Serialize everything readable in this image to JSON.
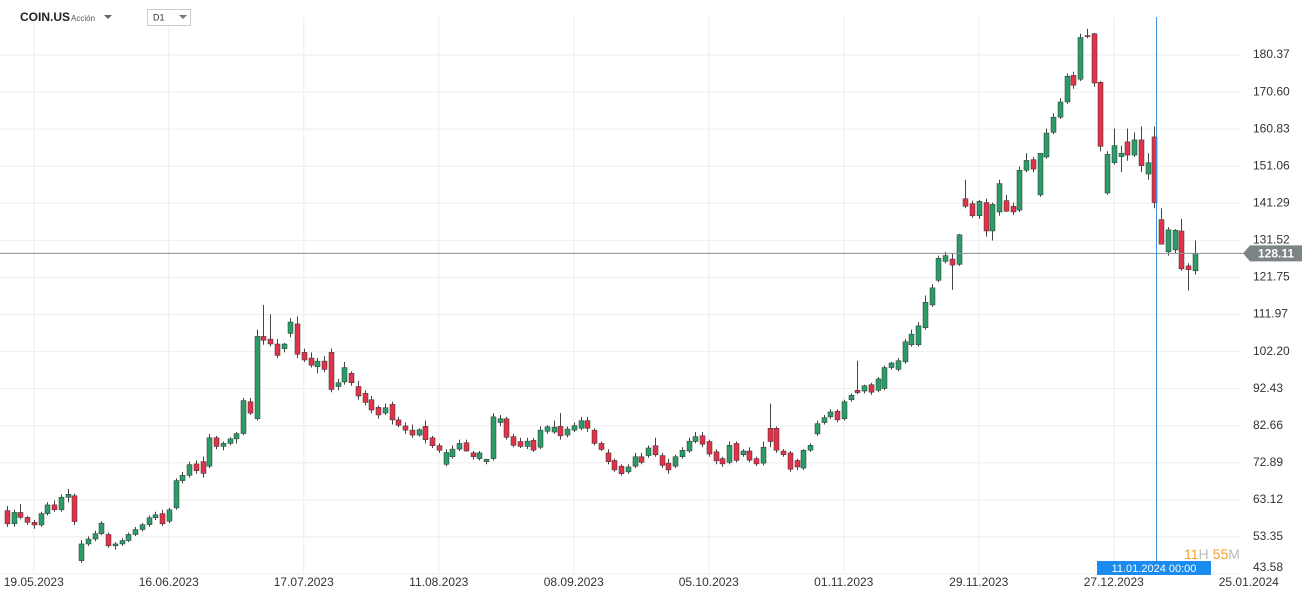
{
  "header": {
    "symbol": "COIN.US",
    "asset_type": "Acción",
    "timeframe": "D1"
  },
  "chart_data": {
    "type": "candlestick",
    "up_color": "#2b9c68",
    "down_color": "#e0334a",
    "grid": true,
    "candles": [
      [
        60.3,
        61.5,
        56,
        56.8
      ],
      [
        56.8,
        60.5,
        56,
        59.8
      ],
      [
        59.8,
        62,
        58,
        58.5
      ],
      [
        58.5,
        58.9,
        56.5,
        57.2
      ],
      [
        57.2,
        57.8,
        55.5,
        56.5
      ],
      [
        56.5,
        60,
        56,
        59.5
      ],
      [
        59.5,
        62.5,
        59,
        61.8
      ],
      [
        61.8,
        63,
        60,
        60.5
      ],
      [
        60.5,
        64.5,
        60,
        63.8
      ],
      [
        63.8,
        66,
        62.5,
        64.6
      ],
      [
        64.2,
        64.8,
        56.5,
        57.4
      ],
      [
        47.1,
        52.5,
        46.5,
        51.5
      ],
      [
        51.5,
        53.5,
        51,
        52.8
      ],
      [
        52.8,
        55,
        52.2,
        54.2
      ],
      [
        54.2,
        57.5,
        53.8,
        57
      ],
      [
        54,
        54.5,
        50.5,
        51
      ],
      [
        51,
        52,
        50,
        51.5
      ],
      [
        51.5,
        53,
        51,
        52.4
      ],
      [
        52.4,
        54.5,
        52,
        54
      ],
      [
        54,
        56,
        53.6,
        55.3
      ],
      [
        55.3,
        57,
        54.8,
        56.6
      ],
      [
        56.6,
        59,
        56,
        58.4
      ],
      [
        58.4,
        60,
        57.8,
        59.2
      ],
      [
        59.5,
        60.5,
        56.2,
        56.8
      ],
      [
        57.5,
        61,
        57,
        60.5
      ],
      [
        61,
        68.8,
        60.5,
        68.2
      ],
      [
        68.2,
        70.5,
        67.5,
        69.6
      ],
      [
        69.6,
        73.2,
        69,
        72.4
      ],
      [
        72.6,
        73.5,
        70,
        70.8
      ],
      [
        73.2,
        74.5,
        69,
        70.1
      ],
      [
        72,
        80.5,
        71.5,
        79.5
      ],
      [
        79.5,
        80,
        76.5,
        77.2
      ],
      [
        77.2,
        78.5,
        76.2,
        78
      ],
      [
        78,
        79.6,
        77.5,
        79.2
      ],
      [
        79.2,
        81,
        78,
        80.6
      ],
      [
        80.6,
        90,
        80.2,
        89.3
      ],
      [
        89,
        90,
        85.5,
        86
      ],
      [
        84.5,
        108,
        84,
        106.2
      ],
      [
        106.2,
        114.5,
        104,
        105.2
      ],
      [
        105.5,
        112,
        103.5,
        104.2
      ],
      [
        104.2,
        105.5,
        100.5,
        101.2
      ],
      [
        103,
        104.5,
        102,
        104.2
      ],
      [
        107,
        111,
        106,
        110
      ],
      [
        109.5,
        111.5,
        100.5,
        101.5
      ],
      [
        102,
        103,
        99.5,
        100
      ],
      [
        100.5,
        102,
        98,
        98.6
      ],
      [
        98.2,
        100.5,
        96.5,
        99.7
      ],
      [
        99.7,
        101,
        96.8,
        97.5
      ],
      [
        102,
        103,
        91.5,
        92.2
      ],
      [
        93,
        95,
        92,
        94
      ],
      [
        94.2,
        99.5,
        93.5,
        98
      ],
      [
        96.5,
        97,
        93.2,
        94
      ],
      [
        93,
        94.5,
        89.5,
        90.5
      ],
      [
        91.2,
        92,
        88,
        88.8
      ],
      [
        89.5,
        90.5,
        86,
        86.8
      ],
      [
        87.5,
        88,
        84.5,
        85.5
      ],
      [
        86,
        88.5,
        85.5,
        87.4
      ],
      [
        88.3,
        89,
        83,
        84.2
      ],
      [
        84.2,
        85,
        82.3,
        82.8
      ],
      [
        82.6,
        83.5,
        80.5,
        81.5
      ],
      [
        81.5,
        83,
        79.5,
        80.2
      ],
      [
        80.2,
        82,
        79.8,
        81.6
      ],
      [
        82.5,
        84,
        78,
        79
      ],
      [
        79.5,
        80,
        76.8,
        77.4
      ],
      [
        77.4,
        78,
        75.5,
        76.2
      ],
      [
        72.5,
        76.5,
        72,
        75.6
      ],
      [
        74.5,
        77.5,
        74,
        76.5
      ],
      [
        76.5,
        79,
        76,
        78
      ],
      [
        78.2,
        79,
        75.8,
        76
      ],
      [
        75.5,
        76,
        73.8,
        74.5
      ],
      [
        74,
        76,
        73.5,
        75.5
      ],
      [
        73.2,
        74,
        72.5,
        73.8
      ],
      [
        74,
        86,
        73.5,
        85
      ],
      [
        83.5,
        85.5,
        82.5,
        84.5
      ],
      [
        84.5,
        85,
        79,
        79.6
      ],
      [
        79.8,
        80.5,
        77,
        77.5
      ],
      [
        78.5,
        79.5,
        76.8,
        77.2
      ],
      [
        77.2,
        79.5,
        76.5,
        78.6
      ],
      [
        78.8,
        79.5,
        75.8,
        76.2
      ],
      [
        77,
        82.5,
        76.5,
        81.5
      ],
      [
        81.2,
        82.8,
        80.5,
        82.4
      ],
      [
        81,
        84,
        80.5,
        82.3
      ],
      [
        82.5,
        86,
        79,
        80
      ],
      [
        80.2,
        82.5,
        79.6,
        81.8
      ],
      [
        81.5,
        83.5,
        81,
        82.7
      ],
      [
        82,
        85,
        81.5,
        84
      ],
      [
        84,
        85,
        81,
        82
      ],
      [
        81.5,
        82,
        77.5,
        78
      ],
      [
        78,
        78.5,
        76,
        76.4
      ],
      [
        75.5,
        76.5,
        72.5,
        73.2
      ],
      [
        73.5,
        74,
        70.5,
        71
      ],
      [
        72,
        72.5,
        69.5,
        70
      ],
      [
        70.5,
        72.5,
        70,
        71.8
      ],
      [
        72,
        75.5,
        71.5,
        74.5
      ],
      [
        74.5,
        75.5,
        72.5,
        73
      ],
      [
        74.8,
        77.5,
        74.2,
        76.8
      ],
      [
        77.4,
        79.5,
        74.5,
        75
      ],
      [
        74.8,
        75.5,
        71.5,
        72.2
      ],
      [
        72.8,
        74,
        70,
        71
      ],
      [
        72,
        75,
        71.5,
        74.5
      ],
      [
        74.5,
        77,
        74,
        76.2
      ],
      [
        76,
        79.5,
        75.5,
        78.6
      ],
      [
        78.5,
        81,
        78,
        79.8
      ],
      [
        80,
        81,
        77,
        77.8
      ],
      [
        78.5,
        79,
        74.5,
        75.2
      ],
      [
        75.8,
        76.5,
        72.5,
        73.4
      ],
      [
        74,
        74.5,
        71.8,
        72.6
      ],
      [
        73,
        78.5,
        72.5,
        77.5
      ],
      [
        78,
        78.5,
        73,
        73.5
      ],
      [
        75,
        76.5,
        74.5,
        76
      ],
      [
        76,
        77,
        73,
        73.6
      ],
      [
        74,
        74.5,
        72,
        72.6
      ],
      [
        72.8,
        78.5,
        72.2,
        77
      ],
      [
        82,
        88.5,
        77,
        78.5
      ],
      [
        82,
        82.5,
        75.5,
        76.2
      ],
      [
        76,
        76.5,
        74.5,
        75
      ],
      [
        75.5,
        76,
        70.5,
        71.2
      ],
      [
        73.5,
        74,
        71,
        71.8
      ],
      [
        71.5,
        76.5,
        71,
        76.2
      ],
      [
        76.2,
        78,
        75.8,
        77.5
      ],
      [
        80.5,
        84,
        80,
        83.2
      ],
      [
        83.5,
        85.5,
        83,
        84.8
      ],
      [
        85,
        87,
        84.5,
        86.3
      ],
      [
        86.5,
        87,
        83.5,
        84.2
      ],
      [
        84.5,
        89.5,
        84,
        89
      ],
      [
        89.5,
        91.2,
        89,
        90.7
      ],
      [
        92,
        99.8,
        91,
        91.4
      ],
      [
        91.8,
        93.5,
        91.2,
        93.2
      ],
      [
        93.5,
        94,
        90.8,
        91.5
      ],
      [
        92,
        95.5,
        91.5,
        95
      ],
      [
        92.5,
        98.5,
        92,
        98
      ],
      [
        98,
        99.5,
        97.5,
        99.2
      ],
      [
        97.5,
        100.5,
        97,
        99.8
      ],
      [
        99.5,
        105.5,
        99,
        104.8
      ],
      [
        104,
        108,
        103.5,
        106.8
      ],
      [
        104,
        110,
        103.5,
        109
      ],
      [
        108.5,
        117,
        108,
        115.2
      ],
      [
        114.5,
        120,
        114,
        119
      ],
      [
        121,
        127.5,
        120.5,
        126.8
      ],
      [
        126,
        128.5,
        125.5,
        127.5
      ],
      [
        126.6,
        128,
        118.5,
        125
      ],
      [
        125.2,
        133.2,
        124.8,
        133
      ],
      [
        142.5,
        147.5,
        140,
        140.5
      ],
      [
        141.2,
        142,
        137.5,
        138
      ],
      [
        138,
        142.2,
        137.2,
        141.8
      ],
      [
        141.5,
        142.5,
        132.5,
        134
      ],
      [
        134,
        141.5,
        131.5,
        141
      ],
      [
        139,
        147.5,
        138,
        146.5
      ],
      [
        142,
        143.5,
        139,
        139.2
      ],
      [
        140.5,
        141.5,
        138.2,
        139
      ],
      [
        139.5,
        151,
        139,
        150
      ],
      [
        150,
        154.5,
        149.5,
        152.6
      ],
      [
        152.8,
        153.5,
        149.5,
        150.3
      ],
      [
        143.5,
        154.5,
        143,
        154.5
      ],
      [
        153.5,
        161,
        153,
        159.8
      ],
      [
        160,
        165,
        159.5,
        164
      ],
      [
        164,
        169,
        163.5,
        168
      ],
      [
        168,
        175.5,
        167.5,
        174.8
      ],
      [
        175,
        176,
        171.5,
        172.4
      ],
      [
        174,
        186,
        173.5,
        185
      ],
      [
        185.5,
        187.3,
        184.8,
        185.3
      ],
      [
        186,
        186.2,
        172,
        173
      ],
      [
        173.2,
        173.5,
        155,
        156.3
      ],
      [
        144,
        155,
        143.5,
        154.2
      ],
      [
        152,
        161,
        151.5,
        156.5
      ],
      [
        153.6,
        156.5,
        149.5,
        154.5
      ],
      [
        157.5,
        161,
        152.5,
        154
      ],
      [
        154,
        160,
        153.5,
        158
      ],
      [
        158,
        161.5,
        149.5,
        151.2
      ],
      [
        149,
        154.5,
        147.5,
        152
      ],
      [
        158.8,
        161.5,
        140,
        141.5
      ],
      [
        137,
        140,
        130.5,
        130.5
      ],
      [
        128.5,
        135,
        127.5,
        134.3
      ],
      [
        129,
        134.5,
        128,
        134.2
      ],
      [
        134,
        137.2,
        123.5,
        124
      ],
      [
        124.8,
        125.5,
        118.3,
        123.8
      ],
      [
        123.5,
        131.5,
        122.5,
        128.11
      ]
    ],
    "xlim": [
      -1,
      182.7
    ],
    "xticks": [
      {
        "value": 4,
        "label": "19.05.2023"
      },
      {
        "value": 24,
        "label": "16.06.2023"
      },
      {
        "value": 44,
        "label": "17.07.2023"
      },
      {
        "value": 64,
        "label": "11.08.2023"
      },
      {
        "value": 84,
        "label": "08.09.2023"
      },
      {
        "value": 104,
        "label": "05.10.2023"
      },
      {
        "value": 124,
        "label": "01.11.2023"
      },
      {
        "value": 144,
        "label": "29.11.2023"
      },
      {
        "value": 164,
        "label": "27.12.2023"
      },
      {
        "value": 184,
        "label": "25.01.2024"
      }
    ],
    "ylim": [
      43.58,
      190.4
    ],
    "yticks": [
      43.58,
      53.35,
      63.12,
      72.89,
      82.66,
      92.43,
      {
        "value": 102.2,
        "label": "102.20"
      },
      111.97,
      121.75,
      131.52,
      141.29,
      151.06,
      160.83,
      {
        "value": 170.6,
        "label": "170.60"
      },
      180.37
    ],
    "last_price": 128.11,
    "crosshair": {
      "x": 170,
      "label": "11.01.2024 00:00"
    },
    "countdown": {
      "hours": "11",
      "hours_unit": "H",
      "minutes": "55",
      "minutes_unit": "M"
    }
  }
}
